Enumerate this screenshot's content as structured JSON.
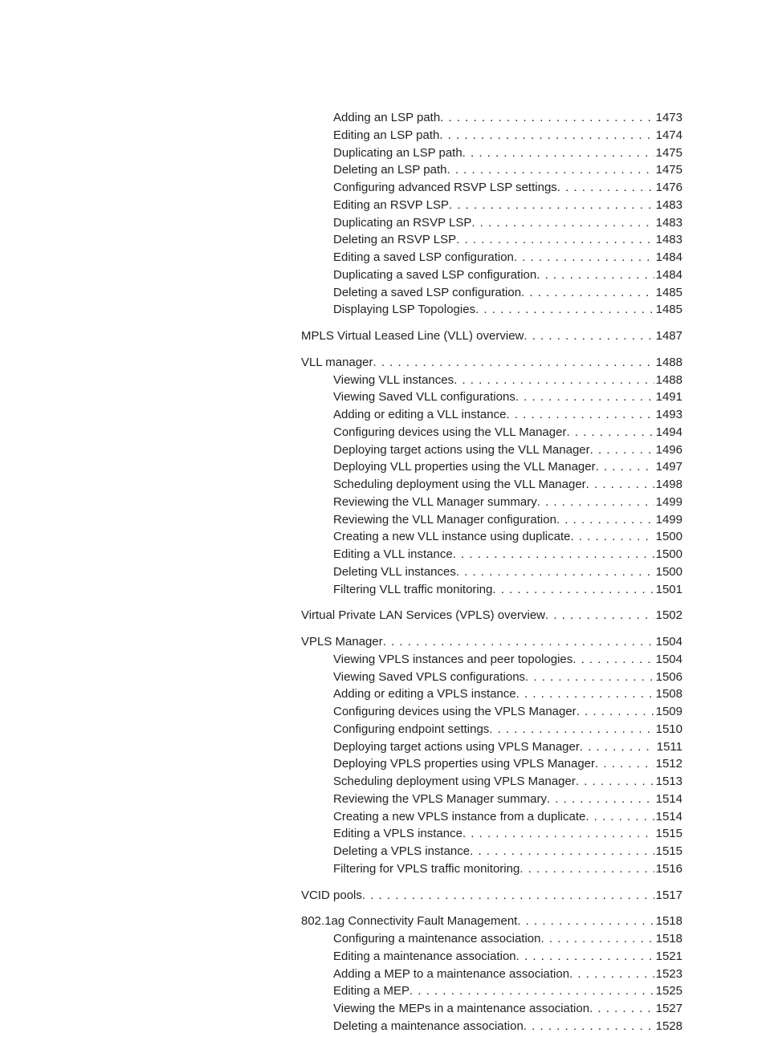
{
  "font_color": "#222222",
  "background_color": "#ffffff",
  "entries": [
    {
      "indent": 1,
      "label": "Adding an LSP path",
      "page": "1473"
    },
    {
      "indent": 1,
      "label": "Editing an LSP path",
      "page": "1474"
    },
    {
      "indent": 1,
      "label": "Duplicating an LSP path",
      "page": "1475"
    },
    {
      "indent": 1,
      "label": "Deleting an LSP path",
      "page": "1475"
    },
    {
      "indent": 1,
      "label": "Configuring advanced RSVP LSP settings",
      "page": "1476"
    },
    {
      "indent": 1,
      "label": "Editing an RSVP LSP",
      "page": "1483"
    },
    {
      "indent": 1,
      "label": "Duplicating an RSVP LSP",
      "page": "1483"
    },
    {
      "indent": 1,
      "label": "Deleting an RSVP LSP",
      "page": "1483"
    },
    {
      "indent": 1,
      "label": "Editing a saved LSP configuration",
      "page": "1484"
    },
    {
      "indent": 1,
      "label": "Duplicating a saved LSP configuration",
      "page": "1484"
    },
    {
      "indent": 1,
      "label": "Deleting a saved LSP configuration",
      "page": "1485"
    },
    {
      "indent": 1,
      "label": "Displaying LSP Topologies",
      "page": "1485"
    },
    {
      "gap": true
    },
    {
      "indent": 0,
      "label": "MPLS Virtual Leased Line (VLL) overview",
      "page": "1487"
    },
    {
      "gap": true
    },
    {
      "indent": 0,
      "label": "VLL manager",
      "page": "1488"
    },
    {
      "indent": 1,
      "label": "Viewing VLL instances",
      "page": "1488"
    },
    {
      "indent": 1,
      "label": "Viewing Saved VLL configurations",
      "page": "1491"
    },
    {
      "indent": 1,
      "label": "Adding or editing a VLL instance",
      "page": "1493"
    },
    {
      "indent": 1,
      "label": "Configuring devices using the VLL Manager",
      "page": "1494"
    },
    {
      "indent": 1,
      "label": "Deploying target actions using the VLL Manager",
      "page": "1496"
    },
    {
      "indent": 1,
      "label": "Deploying VLL properties using the VLL Manager",
      "page": "1497"
    },
    {
      "indent": 1,
      "label": "Scheduling deployment using the VLL Manager",
      "page": "1498"
    },
    {
      "indent": 1,
      "label": "Reviewing the VLL Manager summary",
      "page": "1499"
    },
    {
      "indent": 1,
      "label": "Reviewing the VLL Manager configuration",
      "page": "1499"
    },
    {
      "indent": 1,
      "label": "Creating a new VLL instance using duplicate",
      "page": "1500"
    },
    {
      "indent": 1,
      "label": "Editing a VLL instance",
      "page": "1500"
    },
    {
      "indent": 1,
      "label": "Deleting VLL instances",
      "page": "1500"
    },
    {
      "indent": 1,
      "label": "Filtering VLL traffic monitoring",
      "page": "1501"
    },
    {
      "gap": true
    },
    {
      "indent": 0,
      "label": "Virtual Private LAN Services (VPLS) overview",
      "page": "1502"
    },
    {
      "gap": true
    },
    {
      "indent": 0,
      "label": "VPLS Manager",
      "page": "1504"
    },
    {
      "indent": 1,
      "label": "Viewing VPLS instances and peer topologies",
      "page": "1504"
    },
    {
      "indent": 1,
      "label": "Viewing Saved VPLS configurations",
      "page": "1506"
    },
    {
      "indent": 1,
      "label": "Adding or editing a VPLS instance",
      "page": "1508"
    },
    {
      "indent": 1,
      "label": "Configuring devices using the VPLS Manager",
      "page": "1509"
    },
    {
      "indent": 1,
      "label": "Configuring endpoint settings",
      "page": "1510"
    },
    {
      "indent": 1,
      "label": "Deploying target actions using VPLS Manager",
      "page": "1511"
    },
    {
      "indent": 1,
      "label": "Deploying VPLS properties using VPLS Manager",
      "page": "1512"
    },
    {
      "indent": 1,
      "label": "Scheduling deployment using VPLS Manager",
      "page": "1513"
    },
    {
      "indent": 1,
      "label": "Reviewing the VPLS Manager summary",
      "page": "1514"
    },
    {
      "indent": 1,
      "label": "Creating a new VPLS instance from a duplicate",
      "page": "1514"
    },
    {
      "indent": 1,
      "label": "Editing a VPLS instance",
      "page": "1515"
    },
    {
      "indent": 1,
      "label": "Deleting a VPLS instance",
      "page": "1515"
    },
    {
      "indent": 1,
      "label": "Filtering for VPLS traffic monitoring",
      "page": "1516"
    },
    {
      "gap": true
    },
    {
      "indent": 0,
      "label": "VCID pools",
      "page": "1517"
    },
    {
      "gap": true
    },
    {
      "indent": 0,
      "label": "802.1ag Connectivity Fault Management",
      "page": "1518"
    },
    {
      "indent": 1,
      "label": "Configuring a maintenance association",
      "page": "1518"
    },
    {
      "indent": 1,
      "label": "Editing a maintenance association",
      "page": "1521"
    },
    {
      "indent": 1,
      "label": "Adding a MEP to a maintenance association",
      "page": "1523"
    },
    {
      "indent": 1,
      "label": "Editing a MEP",
      "page": "1525"
    },
    {
      "indent": 1,
      "label": "Viewing the MEPs in a maintenance association",
      "page": "1527"
    },
    {
      "indent": 1,
      "label": "Deleting a maintenance association",
      "page": "1528"
    }
  ]
}
